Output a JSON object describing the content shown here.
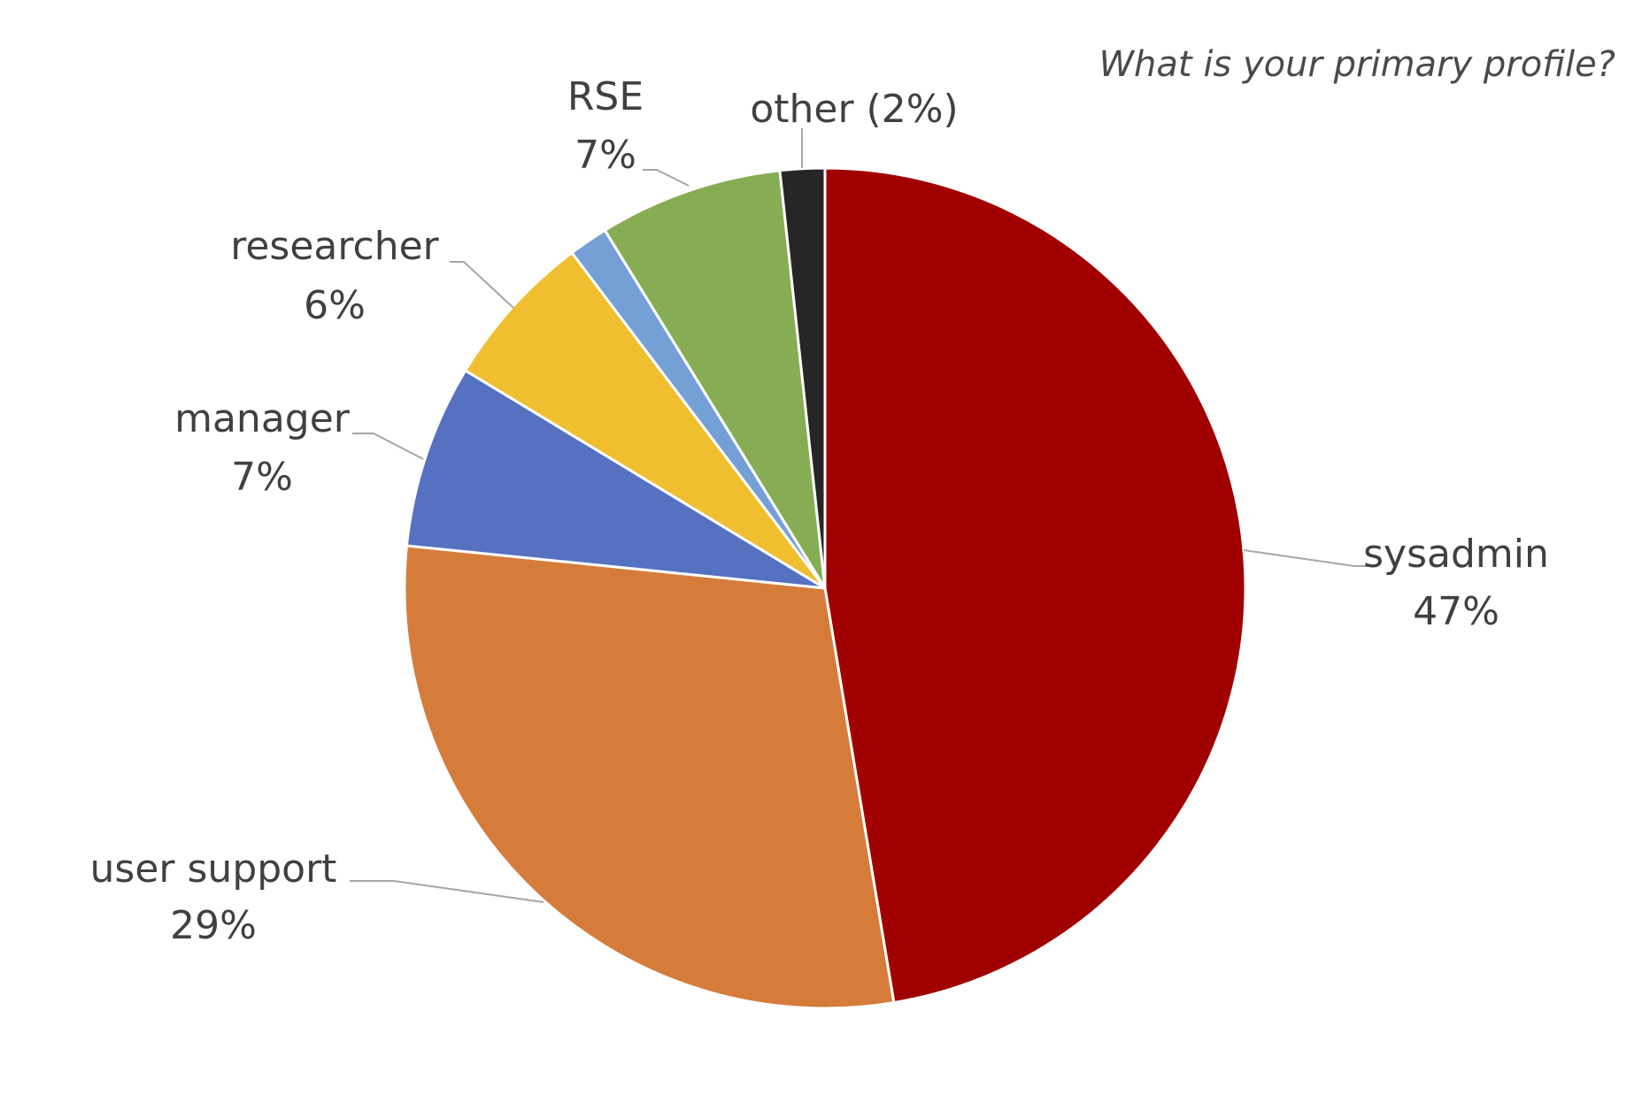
{
  "chart_data": {
    "type": "pie",
    "title": "What is your primary profile?",
    "slices": [
      {
        "category": "sysadmin",
        "value": 47,
        "label": "47%",
        "color": "#a10000"
      },
      {
        "category": "user support",
        "value": 29,
        "label": "29%",
        "color": "#d57c3b"
      },
      {
        "category": "manager",
        "value": 7,
        "label": "7%",
        "color": "#5671c0"
      },
      {
        "category": "researcher",
        "value": 6,
        "label": "6%",
        "color": "#efbf2f"
      },
      {
        "category": "",
        "value": 1.5,
        "label": "",
        "color": "#75a0d6"
      },
      {
        "category": "RSE",
        "value": 7,
        "label": "7%",
        "color": "#86ad53"
      },
      {
        "category": "other (2%)",
        "value": 1.7,
        "label": "",
        "color": "#262626"
      }
    ],
    "start": "12 o'clock",
    "direction": "clockwise",
    "legend": "none",
    "data_labels": "outside with leader lines"
  }
}
